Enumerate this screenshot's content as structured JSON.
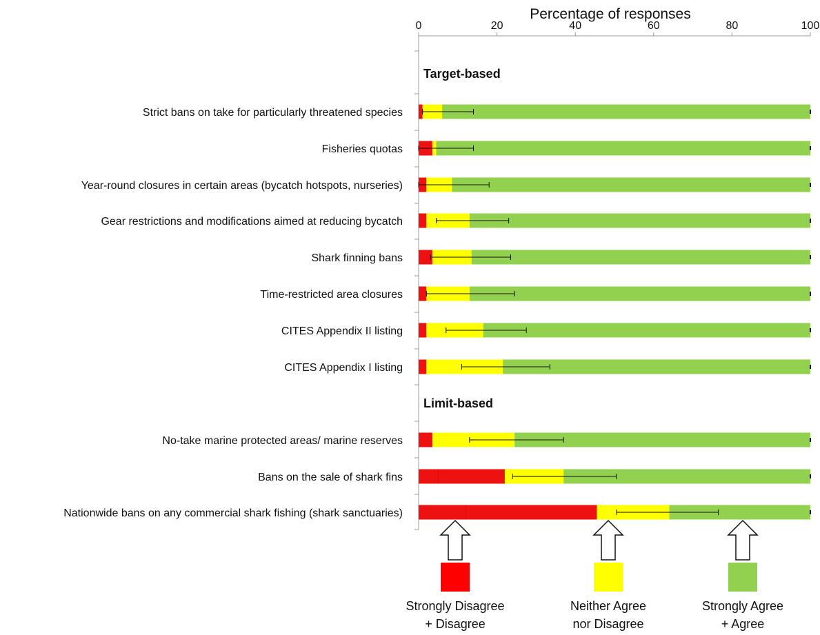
{
  "chart_data": {
    "type": "bar",
    "stacked": true,
    "orientation": "horizontal",
    "title": "Percentage of responses",
    "xlim": [
      0,
      100
    ],
    "xticks": [
      0,
      20,
      40,
      60,
      80,
      100
    ],
    "groups": [
      {
        "label": "Target-based",
        "items": [
          {
            "label": "Strict bans on take for particularly threatened species",
            "strong_disagree": 1,
            "disagree": 0,
            "neither": 5,
            "agree": 94,
            "err": [
              1,
              14
            ]
          },
          {
            "label": "Fisheries quotas",
            "strong_disagree": 3.5,
            "disagree": 0,
            "neither": 1,
            "agree": 95.5,
            "err": [
              0,
              14
            ]
          },
          {
            "label": "Year-round closures in certain areas (bycatch hotspots, nurseries)",
            "strong_disagree": 2,
            "disagree": 0,
            "neither": 6.5,
            "agree": 91.5,
            "err": [
              0,
              18
            ]
          },
          {
            "label": "Gear restrictions and modifications aimed at reducing bycatch",
            "strong_disagree": 2,
            "disagree": 0,
            "neither": 11,
            "agree": 87,
            "err": [
              4.5,
              23
            ]
          },
          {
            "label": "Shark finning bans",
            "strong_disagree": 3.5,
            "disagree": 0,
            "neither": 10,
            "agree": 86.5,
            "err": [
              3,
              23.5
            ]
          },
          {
            "label": "Time-restricted area closures",
            "strong_disagree": 2,
            "disagree": 0,
            "neither": 11,
            "agree": 87,
            "err": [
              2,
              24.5
            ]
          },
          {
            "label": "CITES  Appendix II listing",
            "strong_disagree": 2,
            "disagree": 0,
            "neither": 14.5,
            "agree": 83.5,
            "err": [
              7,
              27.5
            ]
          },
          {
            "label": "CITES Appendix I listing",
            "strong_disagree": 2,
            "disagree": 0,
            "neither": 19.5,
            "agree": 78.5,
            "err": [
              11,
              33.5
            ]
          }
        ]
      },
      {
        "label": "Limit-based",
        "items": [
          {
            "label": "No-take marine protected areas/ marine reserves",
            "strong_disagree": 3.5,
            "disagree": 0,
            "neither": 21,
            "agree": 75.5,
            "err": [
              13,
              37
            ]
          },
          {
            "label": "Bans on the sale of shark fins",
            "strong_disagree": 5,
            "disagree": 17,
            "neither": 15,
            "agree": 63,
            "err": [
              24,
              50.5
            ]
          },
          {
            "label": "Nationwide bans on any commercial shark fishing (shark sanctuaries)",
            "strong_disagree": 12,
            "disagree": 33.5,
            "neither": 18.5,
            "agree": 36,
            "err": [
              50.5,
              76.5
            ]
          }
        ]
      }
    ],
    "colors": {
      "strong_disagree": "#ee1111",
      "disagree": "#ee1111",
      "neither": "#ffff00",
      "agree": "#92d050",
      "axis": "#9a9a9a",
      "error_bar": "#111111"
    },
    "legend": {
      "placement": "bottom",
      "entries": [
        {
          "line1": "Strongly Disagree",
          "line2": "+ Disagree",
          "color": "#ff0000"
        },
        {
          "line1": "Neither Agree",
          "line2": "nor Disagree",
          "color": "#ffff00"
        },
        {
          "line1": "Strongly Agree",
          "line2": "+ Agree",
          "color": "#92d050"
        }
      ]
    }
  }
}
